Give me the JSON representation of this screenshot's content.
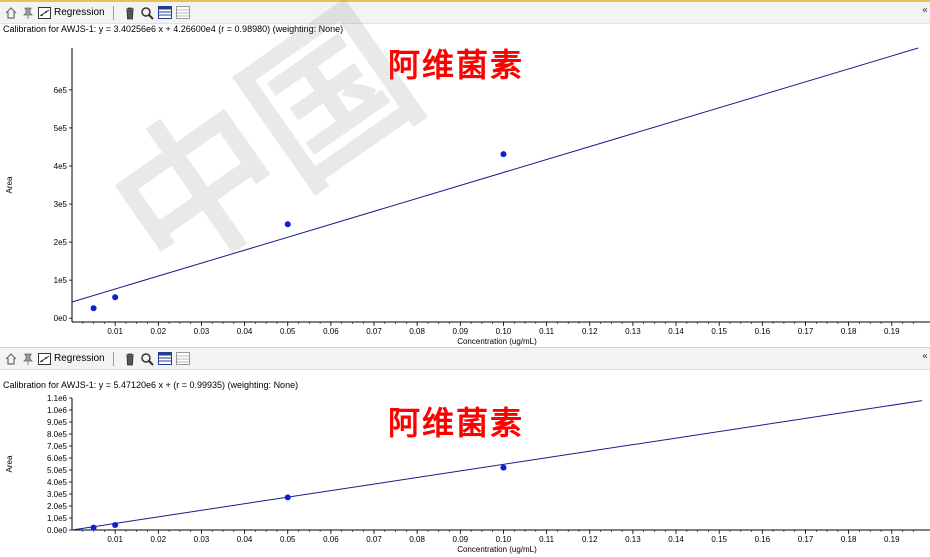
{
  "watermark": {
    "text": "中国",
    "color": "#777777"
  },
  "colors": {
    "regression_line": "#1a1a8c",
    "point": "#0b1fd6",
    "overlay": "#ff0000",
    "axis": "#000000"
  },
  "panels": [
    {
      "toolbar": {
        "icons": [
          "home-icon",
          "pin-icon",
          "regression-icon",
          "trash-icon",
          "zoom-icon",
          "table-icon",
          "list-icon"
        ],
        "regression_label": "Regression",
        "right_glyph": "«"
      },
      "caption": "Calibration for AWJS-1: y = 3.40256e6 x + 4.26600e4 (r = 0.98980)  (weighting: None)",
      "overlay_text": "阿维菌素"
    },
    {
      "toolbar": {
        "icons": [
          "home-icon",
          "pin-icon",
          "regression-icon",
          "trash-icon",
          "zoom-icon",
          "table-icon",
          "list-icon"
        ],
        "regression_label": "Regression",
        "right_glyph": "«"
      },
      "caption": "Calibration for AWJS-1: y = 5.47120e6 x + (r = 0.99935)  (weighting: None)",
      "overlay_text": "阿维菌素"
    }
  ],
  "chart_data": [
    {
      "type": "scatter",
      "title": "",
      "xlabel": "Concentration (ug/mL)",
      "ylabel": "Area",
      "xlim": [
        0.0,
        0.197
      ],
      "ylim": [
        -10000,
        710000
      ],
      "x_ticks": [
        0.01,
        0.02,
        0.03,
        0.04,
        0.05,
        0.06,
        0.07,
        0.08,
        0.09,
        0.1,
        0.11,
        0.12,
        0.13,
        0.14,
        0.15,
        0.16,
        0.17,
        0.18,
        0.19
      ],
      "x_tick_labels": [
        "0.01",
        "0.02",
        "0.03",
        "0.04",
        "0.05",
        "0.06",
        "0.07",
        "0.08",
        "0.09",
        "0.10",
        "0.11",
        "0.12",
        "0.13",
        "0.14",
        "0.15",
        "0.16",
        "0.17",
        "0.18",
        "0.19"
      ],
      "y_ticks": [
        0,
        100000,
        200000,
        300000,
        400000,
        500000,
        600000
      ],
      "y_tick_labels": [
        "0e0",
        "1e5",
        "2e5",
        "3e5",
        "4e5",
        "5e5",
        "6e5"
      ],
      "points": {
        "x": [
          0.005,
          0.01,
          0.05,
          0.1
        ],
        "y": [
          26000,
          55000,
          247000,
          431000
        ]
      },
      "fit": {
        "slope": 3402560,
        "intercept": 42660
      },
      "grid": false
    },
    {
      "type": "scatter",
      "title": "",
      "xlabel": "Concentration (ug/mL)",
      "ylabel": "Area",
      "xlim": [
        0.0,
        0.197
      ],
      "ylim": [
        0,
        1100000
      ],
      "x_ticks": [
        0.01,
        0.02,
        0.03,
        0.04,
        0.05,
        0.06,
        0.07,
        0.08,
        0.09,
        0.1,
        0.11,
        0.12,
        0.13,
        0.14,
        0.15,
        0.16,
        0.17,
        0.18,
        0.19
      ],
      "x_tick_labels": [
        "0.01",
        "0.02",
        "0.03",
        "0.04",
        "0.05",
        "0.06",
        "0.07",
        "0.08",
        "0.09",
        "0.10",
        "0.11",
        "0.12",
        "0.13",
        "0.14",
        "0.15",
        "0.16",
        "0.17",
        "0.18",
        "0.19"
      ],
      "y_ticks": [
        0,
        100000,
        200000,
        300000,
        400000,
        500000,
        600000,
        700000,
        800000,
        900000,
        1000000,
        1100000
      ],
      "y_tick_labels": [
        "0.0e0",
        "1.0e5",
        "2.0e5",
        "3.0e5",
        "4.0e5",
        "5.0e5",
        "6.0e5",
        "7.0e5",
        "8.0e5",
        "9.0e5",
        "1.0e6",
        "1.1e6"
      ],
      "points": {
        "x": [
          0.005,
          0.01,
          0.05,
          0.1
        ],
        "y": [
          20000,
          42000,
          272000,
          520000
        ]
      },
      "fit": {
        "slope": 5471200,
        "intercept": 0
      },
      "grid": false
    }
  ]
}
